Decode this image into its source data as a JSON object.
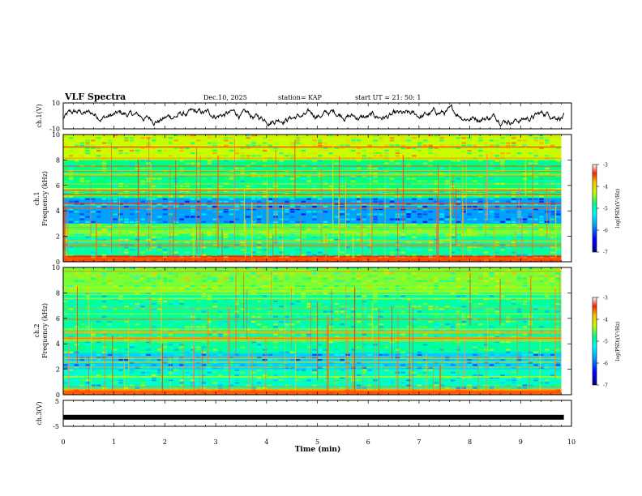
{
  "header": {
    "title": "VLF Spectra",
    "date": "Dec.10, 2025",
    "station": "station= KAP",
    "start_ut": "start  UT  =   21: 50: 1"
  },
  "chart_data": [
    {
      "type": "line",
      "name": "ch1-waveform",
      "ylabel": "ch.1(V)",
      "ylim": [
        -10,
        10
      ],
      "yticks": [
        "10",
        "-10"
      ],
      "xlim": [
        0,
        10
      ]
    },
    {
      "type": "heatmap",
      "name": "ch1-spectrogram",
      "ylabel": "ch.1\nFrequency (kHz)",
      "ylabel_lines": [
        "ch.1",
        "Frequency (kHz)"
      ],
      "ylim": [
        0,
        10
      ],
      "yticks": [
        "0",
        "2",
        "4",
        "6",
        "8",
        "10"
      ],
      "xlim": [
        0,
        10
      ],
      "data_end_min": 9.8,
      "colorbar": {
        "label": "log(PSD)(V²/Hz)",
        "ticks": [
          "-3",
          "-4",
          "-5",
          "-6",
          "-7"
        ],
        "range": [
          -7,
          -3
        ]
      },
      "bands": [
        {
          "from_khz": 0.0,
          "to_khz": 0.5,
          "log_psd": -3.8
        },
        {
          "from_khz": 0.5,
          "to_khz": 2.0,
          "log_psd": -5.3
        },
        {
          "from_khz": 2.0,
          "to_khz": 3.0,
          "log_psd": -5.0
        },
        {
          "from_khz": 3.0,
          "to_khz": 5.0,
          "log_psd": -6.0
        },
        {
          "from_khz": 5.0,
          "to_khz": 8.0,
          "log_psd": -5.2
        },
        {
          "from_khz": 8.0,
          "to_khz": 10.0,
          "log_psd": -4.7
        }
      ]
    },
    {
      "type": "heatmap",
      "name": "ch2-spectrogram",
      "ylabel": "ch.2\nFrequency (kHz)",
      "ylabel_lines": [
        "ch.2",
        "Frequency (kHz)"
      ],
      "ylim": [
        0,
        10
      ],
      "yticks": [
        "0",
        "2",
        "4",
        "6",
        "8",
        "10"
      ],
      "xlim": [
        0,
        10
      ],
      "data_end_min": 9.8,
      "colorbar": {
        "label": "log(PSD)(V²/Hz)",
        "ticks": [
          "-3",
          "-4",
          "-5",
          "-6",
          "-7"
        ],
        "range": [
          -7,
          -3
        ]
      },
      "bands": [
        {
          "from_khz": 0.0,
          "to_khz": 0.5,
          "log_psd": -4.2
        },
        {
          "from_khz": 0.5,
          "to_khz": 2.0,
          "log_psd": -5.4
        },
        {
          "from_khz": 2.0,
          "to_khz": 3.3,
          "log_psd": -5.8
        },
        {
          "from_khz": 3.3,
          "to_khz": 4.5,
          "log_psd": -5.3
        },
        {
          "from_khz": 4.5,
          "to_khz": 8.0,
          "log_psd": -5.3
        },
        {
          "from_khz": 8.0,
          "to_khz": 10.0,
          "log_psd": -4.9
        }
      ]
    },
    {
      "type": "line",
      "name": "ch3-waveform",
      "ylabel": "ch.3(V)",
      "ylim": [
        -5,
        5
      ],
      "yticks": [
        "5",
        "-5"
      ],
      "xlim": [
        0,
        10
      ],
      "level_v": -1.5,
      "xlabel": "Time (min)",
      "xticks": [
        "0",
        "1",
        "2",
        "3",
        "4",
        "5",
        "6",
        "7",
        "8",
        "9",
        "10"
      ]
    }
  ]
}
